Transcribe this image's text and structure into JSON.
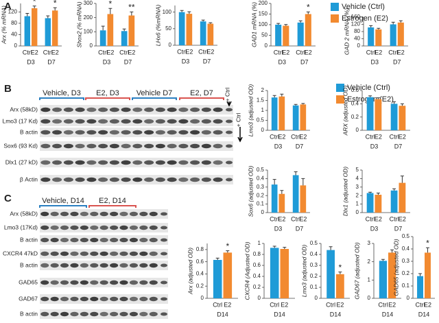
{
  "panels": [
    "A",
    "B",
    "C"
  ],
  "legend": [
    {
      "name": "Vehicle (Ctrl)",
      "color": "#1f9bd7"
    },
    {
      "name": "Estrogen (E2)",
      "color": "#f28a30"
    }
  ],
  "blots": {
    "B": {
      "groups": [
        "Vehicle, D3",
        "E2,  D3",
        "Vehicle D7",
        "E2,  D7"
      ],
      "ctrl": [
        "+ Ctrl",
        "+ Ctrl"
      ],
      "rows": [
        "Arx (58kD)",
        "Lmo3 (17 Kd)",
        "B actin",
        "Sox6 (93 Kd)",
        "Dlx1 (27 kD)",
        "β Actin"
      ]
    },
    "C": {
      "groups": [
        "Vehicle, D14",
        "E2, D14"
      ],
      "rows": [
        "Arx (58kD)",
        "Lmo3 (17Kd)",
        "B actin",
        "CXCR4 47kD",
        "B actin",
        "GAD65",
        "GAD67",
        "B actin"
      ]
    }
  },
  "chart_data": [
    {
      "type": "bar",
      "ylabel": "Arx (% mRNA)",
      "categories": [
        "D3",
        "D7"
      ],
      "ylim": [
        0,
        150
      ],
      "yticks": [
        0,
        40,
        80,
        120
      ],
      "series": [
        {
          "name": "Ctrl",
          "color": "#1f9bd7",
          "values": [
            105,
            98
          ],
          "errors": [
            10,
            8
          ]
        },
        {
          "name": "E2",
          "color": "#f28a30",
          "values": [
            133,
            125
          ],
          "errors": [
            8,
            10
          ],
          "annotations": [
            "*",
            "*"
          ]
        }
      ]
    },
    {
      "type": "bar",
      "ylabel": "Shox2 (% mRNA)",
      "categories": [
        "D3",
        "D7"
      ],
      "ylim": [
        0,
        300
      ],
      "yticks": [
        0,
        100,
        200,
        300
      ],
      "series": [
        {
          "name": "Ctrl",
          "color": "#1f9bd7",
          "values": [
            110,
            105
          ],
          "errors": [
            30,
            15
          ]
        },
        {
          "name": "E2",
          "color": "#f28a30",
          "values": [
            225,
            215
          ],
          "errors": [
            40,
            25
          ],
          "annotations": [
            "*",
            "**"
          ]
        }
      ]
    },
    {
      "type": "bar",
      "ylabel": "LHx6 (%mRNA)",
      "categories": [
        "D3",
        "D7"
      ],
      "ylim": [
        0,
        120
      ],
      "yticks": [
        0,
        50,
        100
      ],
      "series": [
        {
          "name": "Ctrl",
          "color": "#1f9bd7",
          "values": [
            100,
            72
          ],
          "errors": [
            5,
            4
          ]
        },
        {
          "name": "E2",
          "color": "#f28a30",
          "values": [
            95,
            65
          ],
          "errors": [
            6,
            3
          ]
        }
      ]
    },
    {
      "type": "bar",
      "ylabel": "GAD1 mRNA (%)",
      "categories": [
        "D3",
        "D7"
      ],
      "ylim": [
        0,
        200
      ],
      "yticks": [
        0,
        50,
        100,
        150,
        200
      ],
      "series": [
        {
          "name": "Ctrl",
          "color": "#1f9bd7",
          "values": [
            100,
            110
          ],
          "errors": [
            6,
            8
          ]
        },
        {
          "name": "E2",
          "color": "#f28a30",
          "values": [
            95,
            150
          ],
          "errors": [
            6,
            10
          ],
          "annotations": [
            null,
            "*"
          ]
        }
      ]
    },
    {
      "type": "bar",
      "ylabel": "GAD 2 mRNA (%)",
      "categories": [
        "D3",
        "D7"
      ],
      "ylim": [
        0,
        160
      ],
      "yticks": [
        0,
        40,
        80,
        120,
        160
      ],
      "series": [
        {
          "name": "Ctrl",
          "color": "#1f9bd7",
          "values": [
            103,
            120
          ],
          "errors": [
            10,
            12
          ]
        },
        {
          "name": "E2",
          "color": "#f28a30",
          "values": [
            92,
            130
          ],
          "errors": [
            6,
            10
          ]
        }
      ]
    },
    {
      "type": "bar",
      "ylabel": "Lmo3 (adjusted OD)",
      "categories": [
        "D3",
        "D7"
      ],
      "ylim": [
        0,
        2
      ],
      "yticks": [
        0,
        0.5,
        1,
        1.5,
        2
      ],
      "series": [
        {
          "name": "Ctrl",
          "color": "#1f9bd7",
          "values": [
            1.65,
            1.25
          ],
          "errors": [
            0.1,
            0.05
          ]
        },
        {
          "name": "E2",
          "color": "#f28a30",
          "values": [
            1.7,
            1.3
          ],
          "errors": [
            0.12,
            0.05
          ]
        }
      ]
    },
    {
      "type": "bar",
      "ylabel": "ARX (adjusted OD)",
      "categories": [
        "D3",
        "D7"
      ],
      "ylim": [
        0,
        0.6
      ],
      "yticks": [
        0,
        0.2,
        0.4,
        0.6
      ],
      "series": [
        {
          "name": "Ctrl",
          "color": "#1f9bd7",
          "values": [
            0.5,
            0.4
          ],
          "errors": [
            0.02,
            0.03
          ]
        },
        {
          "name": "E2",
          "color": "#f28a30",
          "values": [
            0.47,
            0.37
          ],
          "errors": [
            0.02,
            0.03
          ]
        }
      ]
    },
    {
      "type": "bar",
      "ylabel": "Sox6 (adjusted OD)",
      "categories": [
        "D3",
        "D7"
      ],
      "ylim": [
        0,
        0.5
      ],
      "yticks": [
        0,
        0.1,
        0.2,
        0.3,
        0.4,
        0.5
      ],
      "series": [
        {
          "name": "Ctrl",
          "color": "#1f9bd7",
          "values": [
            0.33,
            0.44
          ],
          "errors": [
            0.06,
            0.04
          ]
        },
        {
          "name": "E2",
          "color": "#f28a30",
          "values": [
            0.22,
            0.32
          ],
          "errors": [
            0.04,
            0.08
          ]
        }
      ]
    },
    {
      "type": "bar",
      "ylabel": "Dlx1 (adjusted OD)",
      "categories": [
        "D3",
        "D7"
      ],
      "ylim": [
        0,
        5
      ],
      "yticks": [
        0,
        1,
        2,
        3,
        4,
        5
      ],
      "series": [
        {
          "name": "Ctrl",
          "color": "#1f9bd7",
          "values": [
            2.3,
            2.6
          ],
          "errors": [
            0.1,
            0.2
          ]
        },
        {
          "name": "E2",
          "color": "#f28a30",
          "values": [
            2.1,
            3.5
          ],
          "errors": [
            0.2,
            0.8
          ]
        }
      ]
    },
    {
      "type": "bar",
      "ylabel": "Arx (adjusted OD)",
      "categories": [
        "D14"
      ],
      "ylim": [
        0,
        0.9
      ],
      "yticks": [
        0,
        0.2,
        0.4,
        0.6,
        0.8
      ],
      "series": [
        {
          "name": "Ctrl",
          "color": "#1f9bd7",
          "values": [
            0.63
          ],
          "errors": [
            0.03
          ]
        },
        {
          "name": "E2",
          "color": "#f28a30",
          "values": [
            0.75
          ],
          "errors": [
            0.03
          ],
          "annotations": [
            "*"
          ]
        }
      ]
    },
    {
      "type": "bar",
      "ylabel": "CXCR4 (Adjusted OD)",
      "categories": [
        "D14"
      ],
      "ylim": [
        0,
        1
      ],
      "yticks": [
        0,
        0.2,
        0.4,
        0.6,
        0.8,
        1
      ],
      "series": [
        {
          "name": "Ctrl",
          "color": "#1f9bd7",
          "values": [
            0.92
          ],
          "errors": [
            0.03
          ]
        },
        {
          "name": "E2",
          "color": "#f28a30",
          "values": [
            0.9
          ],
          "errors": [
            0.03
          ]
        }
      ]
    },
    {
      "type": "bar",
      "ylabel": "Lmo3 (adjusted OD)",
      "categories": [
        "D14"
      ],
      "ylim": [
        0,
        0.5
      ],
      "yticks": [
        0,
        0.1,
        0.2,
        0.3,
        0.4,
        0.5
      ],
      "series": [
        {
          "name": "Ctrl",
          "color": "#1f9bd7",
          "values": [
            0.44
          ],
          "errors": [
            0.03
          ]
        },
        {
          "name": "E2",
          "color": "#f28a30",
          "values": [
            0.22
          ],
          "errors": [
            0.02
          ],
          "annotations": [
            "*"
          ]
        }
      ]
    },
    {
      "type": "bar",
      "ylabel": "GAD67 (adjusted OD)",
      "categories": [
        "D14"
      ],
      "ylim": [
        0,
        3
      ],
      "yticks": [
        0,
        1,
        2,
        3
      ],
      "series": [
        {
          "name": "Ctrl",
          "color": "#1f9bd7",
          "values": [
            2.05
          ],
          "errors": [
            0.08
          ]
        },
        {
          "name": "E2",
          "color": "#f28a30",
          "values": [
            2.5
          ],
          "errors": [
            0.15
          ]
        }
      ]
    },
    {
      "type": "bar",
      "ylabel": "GAD65 (adjusted OD)",
      "categories": [
        "D14"
      ],
      "ylim": [
        0,
        0.5
      ],
      "yticks": [
        0,
        0.1,
        0.2,
        0.3,
        0.4,
        0.5
      ],
      "series": [
        {
          "name": "Ctrl",
          "color": "#1f9bd7",
          "values": [
            0.18
          ],
          "errors": [
            0.02
          ]
        },
        {
          "name": "E2",
          "color": "#f28a30",
          "values": [
            0.37
          ],
          "errors": [
            0.04
          ],
          "annotations": [
            "*"
          ]
        }
      ]
    }
  ]
}
